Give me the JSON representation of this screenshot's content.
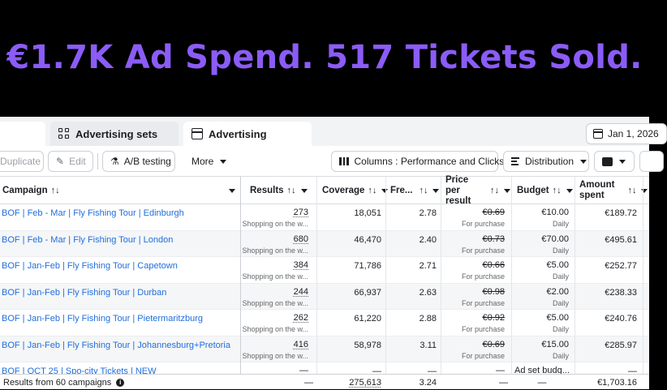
{
  "banner": {
    "headline": "€1.7K Ad Spend. 517 Tickets Sold."
  },
  "tabs": [
    {
      "label": "",
      "icon": "campaigns-icon"
    },
    {
      "label": "Advertising sets",
      "icon": "grid-icon"
    },
    {
      "label": "Advertising",
      "icon": "window-icon"
    }
  ],
  "date_range": {
    "label": "Jan 1, 2026"
  },
  "toolbar": {
    "duplicate": "Duplicate",
    "edit": "Edit",
    "ab_testing": "A/B testing",
    "more": "More",
    "columns": "Columns : Performance and Clicks",
    "distribution": "Distribution"
  },
  "columns": {
    "campaign": "Campaign",
    "results": "Results",
    "coverage": "Coverage",
    "frequency": "Fre...",
    "price_line1": "Price per",
    "price_line2": "result",
    "budget": "Budget",
    "amount_line1": "Amount",
    "amount_line2": "spent",
    "sort_glyph": "↑↓"
  },
  "rows": [
    {
      "name": "BOF | Feb - Mar | Fly Fishing Tour | Edinburgh",
      "results": "273",
      "results_sub": "Shopping on the w...",
      "coverage": "18,051",
      "frequency": "2.78",
      "price": "€0.69",
      "price_sub": "For purchase",
      "budget": "€10.00",
      "budget_sub": "Daily",
      "spent": "€189.72"
    },
    {
      "name": "BOF | Feb - Mar | Fly Fishing Tour | London",
      "results": "680",
      "results_sub": "Shopping on the w...",
      "coverage": "46,470",
      "frequency": "2.40",
      "price": "€0.73",
      "price_sub": "For purchase",
      "budget": "€70.00",
      "budget_sub": "Daily",
      "spent": "€495.61"
    },
    {
      "name": "BOF | Jan-Feb | Fly Fishing Tour | Capetown",
      "results": "384",
      "results_sub": "Shopping on the w...",
      "coverage": "71,786",
      "frequency": "2.71",
      "price": "€0.66",
      "price_sub": "For purchase",
      "budget": "€5.00",
      "budget_sub": "Daily",
      "spent": "€252.77"
    },
    {
      "name": "BOF | Jan-Feb | Fly Fishing Tour | Durban",
      "results": "244",
      "results_sub": "Shopping on the w...",
      "coverage": "66,937",
      "frequency": "2.63",
      "price": "€0.98",
      "price_sub": "For purchase",
      "budget": "€2.00",
      "budget_sub": "Daily",
      "spent": "€238.33"
    },
    {
      "name": "BOF | Jan-Feb | Fly Fishing Tour | Pietermaritzburg",
      "results": "262",
      "results_sub": "Shopping on the w...",
      "coverage": "61,220",
      "frequency": "2.88",
      "price": "€0.92",
      "price_sub": "For purchase",
      "budget": "€5.00",
      "budget_sub": "Daily",
      "spent": "€240.76"
    },
    {
      "name": "BOF | Jan-Feb | Fly Fishing Tour | Johannesburg+Pretoria",
      "results": "416",
      "results_sub": "Shopping on the w...",
      "coverage": "58,978",
      "frequency": "3.11",
      "price": "€0.69",
      "price_sub": "For purchase",
      "budget": "€15.00",
      "budget_sub": "Daily",
      "spent": "€285.97"
    },
    {
      "name": "BOF | OCT 25 | Spo-city Tickets | NEW",
      "results": "—",
      "results_sub": "",
      "coverage": "—",
      "frequency": "—",
      "price": "—",
      "price_sub": "",
      "budget": "Ad set budg...",
      "budget_sub": "",
      "spent": "—"
    }
  ],
  "footer": {
    "label": "Results from 60 campaigns",
    "results": "—",
    "coverage": "275,613",
    "frequency": "3.24",
    "price": "—",
    "budget": "—",
    "spent": "€1,703.16"
  },
  "colors": {
    "accent": "#8b5cf6",
    "link": "#216fdb"
  }
}
